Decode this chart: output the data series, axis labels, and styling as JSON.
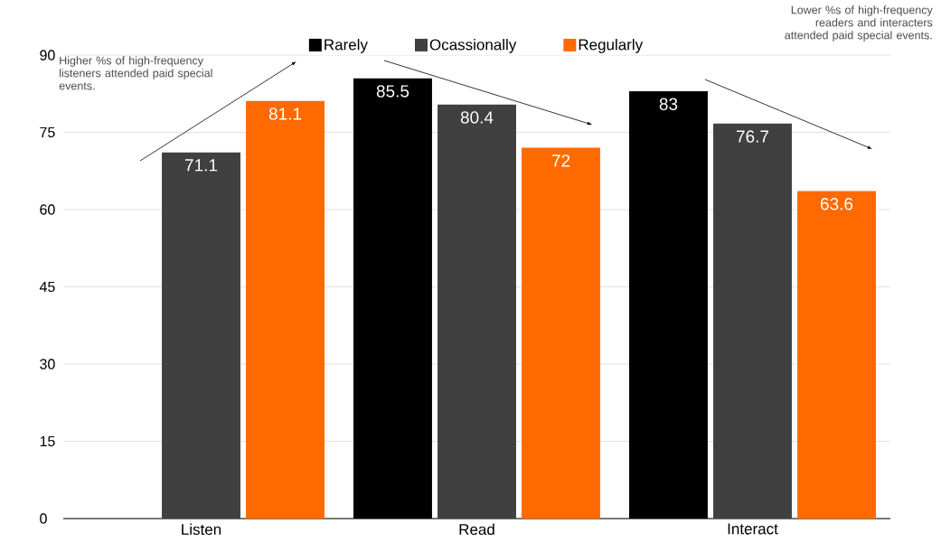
{
  "chart_data": {
    "type": "bar",
    "categories": [
      "Listen",
      "Read",
      "Interact"
    ],
    "series": [
      {
        "name": "Rarely",
        "color": "#000000",
        "values": [
          null,
          85.5,
          83
        ]
      },
      {
        "name": "Ocassionally",
        "color": "#404040",
        "values": [
          71.1,
          80.4,
          76.7
        ]
      },
      {
        "name": "Regularly",
        "color": "#ff6a00",
        "values": [
          81.1,
          72,
          63.6
        ]
      }
    ],
    "ylim": [
      0,
      90
    ],
    "yticks": [
      0,
      15,
      30,
      45,
      60,
      75,
      90
    ],
    "grid": "y",
    "legend": "top",
    "data_labels": true,
    "annotations": [
      "Higher %s of high-frequency listeners attended paid special events.",
      "Lower %s of high-frequency readers and interacters attended paid special events."
    ]
  }
}
